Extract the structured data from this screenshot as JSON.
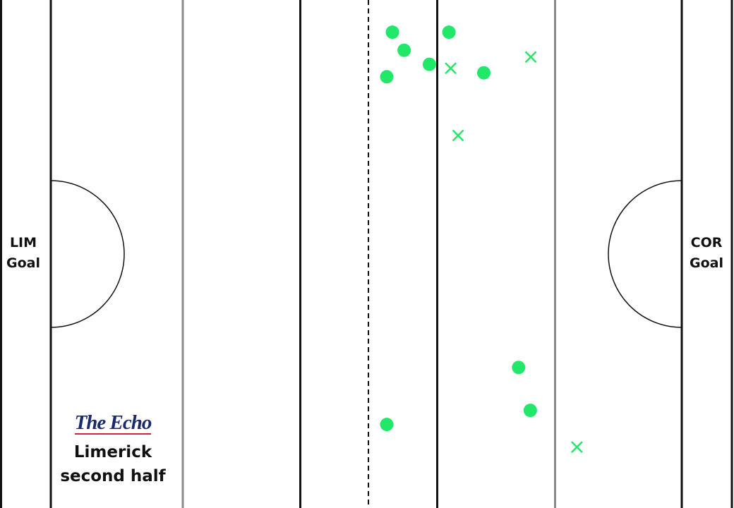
{
  "goals": {
    "left": [
      "LIM",
      "Goal"
    ],
    "right": [
      "COR",
      "Goal"
    ]
  },
  "brand": {
    "logo_text": "The Echo",
    "caption": [
      "Limerick",
      "second half"
    ]
  },
  "colors": {
    "marker": "#22e86a",
    "solid_line": "#111111",
    "grey_line": "#8a8a8a",
    "logo_blue": "#1b2a6b",
    "logo_red": "#d3262e"
  },
  "chart_data": {
    "type": "scatter",
    "xlim": [
      0,
      145
    ],
    "ylim": [
      0,
      90
    ],
    "markers": [
      {
        "kind": "point",
        "x": 78.5,
        "y": 84.3
      },
      {
        "kind": "point",
        "x": 81.2,
        "y": 81.1
      },
      {
        "kind": "point",
        "x": 77.2,
        "y": 76.4
      },
      {
        "kind": "point",
        "x": 87.0,
        "y": 78.6
      },
      {
        "kind": "point",
        "x": 91.5,
        "y": 84.3
      },
      {
        "kind": "point",
        "x": 99.5,
        "y": 77.1
      },
      {
        "kind": "point",
        "x": 107.5,
        "y": 24.9
      },
      {
        "kind": "point",
        "x": 110.2,
        "y": 17.3
      },
      {
        "kind": "point",
        "x": 77.2,
        "y": 14.8
      },
      {
        "kind": "miss",
        "x": 91.9,
        "y": 77.9
      },
      {
        "kind": "miss",
        "x": 110.3,
        "y": 79.9
      },
      {
        "kind": "miss",
        "x": 93.6,
        "y": 66.0
      },
      {
        "kind": "miss",
        "x": 120.9,
        "y": 10.8
      }
    ]
  }
}
